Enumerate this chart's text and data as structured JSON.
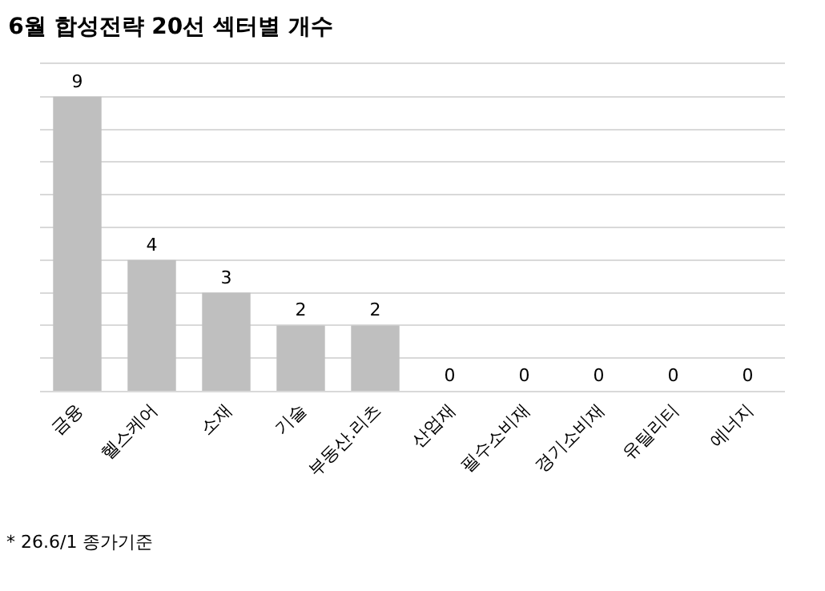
{
  "chart_data": {
    "type": "bar",
    "title": "6월 합성전략 20선 섹터별 개수",
    "categories": [
      "금융",
      "헬스케어",
      "소재",
      "기술",
      "부동산.리츠",
      "산업재",
      "필수소비재",
      "경기소비재",
      "유틸리티",
      "에너지"
    ],
    "values": [
      9,
      4,
      3,
      2,
      2,
      0,
      0,
      0,
      0,
      0
    ],
    "color": "#bfbfbf",
    "data_labels": true,
    "ylim": [
      0,
      10
    ],
    "yticks": [
      {
        "value": 1,
        "label": null
      },
      {
        "value": 2,
        "label": null
      },
      {
        "value": 3,
        "label": null
      },
      {
        "value": 4,
        "label": null
      },
      {
        "value": 5,
        "label": null
      },
      {
        "value": 6,
        "label": null
      },
      {
        "value": 7,
        "label": null
      },
      {
        "value": 8,
        "label": null
      },
      {
        "value": 9,
        "label": null
      }
    ],
    "grid": "y",
    "tick_labels": "x",
    "annotations": [
      "* 26.6/1 종가기준"
    ]
  }
}
